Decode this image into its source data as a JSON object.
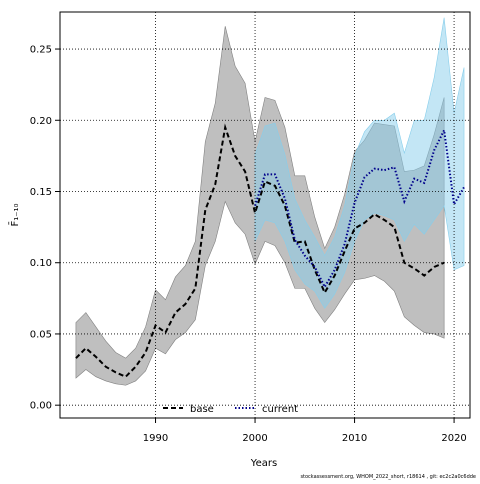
{
  "chart_data": {
    "type": "line",
    "ylabel": "F̄₁₋₁₀",
    "xlabel": "Years",
    "footnote": "stockassessment.org, WHOM_2022_short, r18614 , git: ec2c2a0c6dde",
    "xlim": [
      1980.4,
      2021.6
    ],
    "ylim": [
      -0.009,
      0.276
    ],
    "xticks": [
      1990,
      2000,
      2010,
      2020
    ],
    "yticks": [
      {
        "value": 0,
        "label": "0.00"
      },
      {
        "value": 0.05,
        "label": "0.05"
      },
      {
        "value": 0.1,
        "label": "0.10"
      },
      {
        "value": 0.15,
        "label": "0.15"
      },
      {
        "value": 0.2,
        "label": "0.20"
      },
      {
        "value": 0.25,
        "label": "0.25"
      }
    ],
    "grid": true,
    "legend": "bottom",
    "series": [
      {
        "name": "base",
        "color": "#000000",
        "linestyle": "dashed",
        "band_color": "#808080",
        "x": [
          1982,
          1983,
          1984,
          1985,
          1986,
          1987,
          1988,
          1989,
          1990,
          1991,
          1992,
          1993,
          1994,
          1995,
          1996,
          1997,
          1998,
          1999,
          2000,
          2001,
          2002,
          2003,
          2004,
          2005,
          2006,
          2007,
          2008,
          2009,
          2010,
          2011,
          2012,
          2013,
          2014,
          2015,
          2016,
          2017,
          2018,
          2019
        ],
        "values": [
          0.033,
          0.04,
          0.034,
          0.027,
          0.023,
          0.02,
          0.027,
          0.037,
          0.056,
          0.051,
          0.065,
          0.071,
          0.082,
          0.137,
          0.155,
          0.195,
          0.175,
          0.164,
          0.135,
          0.157,
          0.154,
          0.14,
          0.114,
          0.115,
          0.095,
          0.079,
          0.091,
          0.108,
          0.124,
          0.128,
          0.134,
          0.13,
          0.125,
          0.1,
          0.096,
          0.091,
          0.097,
          0.1
        ],
        "upper": [
          0.058,
          0.065,
          0.055,
          0.045,
          0.037,
          0.033,
          0.04,
          0.055,
          0.081,
          0.074,
          0.09,
          0.098,
          0.115,
          0.185,
          0.212,
          0.266,
          0.238,
          0.226,
          0.185,
          0.216,
          0.214,
          0.195,
          0.161,
          0.161,
          0.132,
          0.11,
          0.125,
          0.148,
          0.178,
          0.186,
          0.198,
          0.197,
          0.196,
          0.164,
          0.165,
          0.168,
          0.19,
          0.216
        ],
        "lower": [
          0.019,
          0.025,
          0.02,
          0.017,
          0.015,
          0.014,
          0.017,
          0.024,
          0.04,
          0.036,
          0.046,
          0.051,
          0.06,
          0.098,
          0.115,
          0.143,
          0.128,
          0.12,
          0.099,
          0.115,
          0.112,
          0.1,
          0.082,
          0.082,
          0.068,
          0.058,
          0.067,
          0.078,
          0.088,
          0.089,
          0.091,
          0.087,
          0.08,
          0.062,
          0.056,
          0.051,
          0.05,
          0.047
        ]
      },
      {
        "name": "current",
        "color": "#00008b",
        "linestyle": "dotted",
        "band_color": "#87ceeb",
        "x": [
          2000,
          2001,
          2002,
          2003,
          2004,
          2005,
          2006,
          2007,
          2008,
          2009,
          2010,
          2011,
          2012,
          2013,
          2014,
          2015,
          2016,
          2017,
          2018,
          2019,
          2020,
          2021
        ],
        "values": [
          0.14,
          0.162,
          0.162,
          0.145,
          0.116,
          0.105,
          0.097,
          0.083,
          0.095,
          0.113,
          0.142,
          0.16,
          0.166,
          0.165,
          0.167,
          0.143,
          0.159,
          0.156,
          0.179,
          0.193,
          0.141,
          0.153
        ],
        "upper": [
          0.176,
          0.196,
          0.198,
          0.176,
          0.145,
          0.13,
          0.118,
          0.105,
          0.118,
          0.14,
          0.175,
          0.192,
          0.2,
          0.2,
          0.205,
          0.177,
          0.2,
          0.2,
          0.23,
          0.272,
          0.205,
          0.237
        ],
        "lower": [
          0.115,
          0.13,
          0.128,
          0.115,
          0.095,
          0.085,
          0.08,
          0.068,
          0.078,
          0.093,
          0.115,
          0.13,
          0.135,
          0.133,
          0.13,
          0.115,
          0.127,
          0.12,
          0.13,
          0.14,
          0.095,
          0.098
        ]
      }
    ]
  }
}
